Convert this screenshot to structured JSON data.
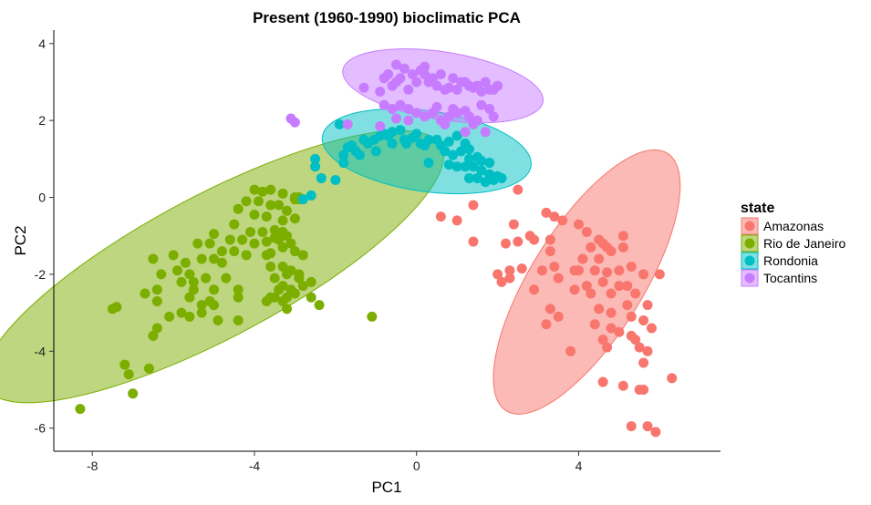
{
  "chart_data": {
    "type": "scatter",
    "title": "Present (1960-1990) bioclimatic PCA",
    "xlabel": "PC1",
    "ylabel": "PC2",
    "xlim": [
      -8.95,
      7.5
    ],
    "ylim": [
      -6.6,
      4.35
    ],
    "xticks": [
      -8,
      -4,
      0,
      4
    ],
    "yticks": [
      4,
      2,
      0,
      -2,
      -4,
      -6
    ],
    "grid": false,
    "legend": {
      "title": "state",
      "position": "right"
    },
    "series": [
      {
        "name": "Amazonas",
        "color": "#F8766D",
        "ellipse": {
          "cx": 4.2,
          "cy": -2.2,
          "rx": 3.75,
          "ry": 1.45,
          "angle_deg": 58
        },
        "points": [
          [
            0.6,
            -0.5
          ],
          [
            1.0,
            -0.6
          ],
          [
            1.4,
            -0.2
          ],
          [
            2.5,
            0.2
          ],
          [
            3.2,
            -0.4
          ],
          [
            1.4,
            -1.15
          ],
          [
            2.4,
            -0.7
          ],
          [
            2.8,
            -1.0
          ],
          [
            3.4,
            -0.5
          ],
          [
            3.6,
            -0.6
          ],
          [
            3.3,
            -1.1
          ],
          [
            2.2,
            -1.2
          ],
          [
            2.5,
            -1.15
          ],
          [
            2.9,
            -1.1
          ],
          [
            3.3,
            -1.4
          ],
          [
            4.0,
            -0.7
          ],
          [
            4.2,
            -0.9
          ],
          [
            4.5,
            -1.1
          ],
          [
            4.6,
            -1.2
          ],
          [
            4.3,
            -1.3
          ],
          [
            4.7,
            -1.3
          ],
          [
            4.5,
            -1.6
          ],
          [
            4.8,
            -1.4
          ],
          [
            4.1,
            -1.6
          ],
          [
            4.0,
            -1.9
          ],
          [
            5.1,
            -1.0
          ],
          [
            5.1,
            -1.3
          ],
          [
            3.9,
            -1.9
          ],
          [
            4.4,
            -1.9
          ],
          [
            4.6,
            -2.2
          ],
          [
            4.7,
            -1.95
          ],
          [
            5.0,
            -1.9
          ],
          [
            5.3,
            -1.8
          ],
          [
            5.2,
            -2.3
          ],
          [
            5.6,
            -2.0
          ],
          [
            6.0,
            -2.0
          ],
          [
            2.0,
            -2.0
          ],
          [
            2.3,
            -1.9
          ],
          [
            2.6,
            -1.85
          ],
          [
            3.1,
            -1.9
          ],
          [
            3.4,
            -1.8
          ],
          [
            3.5,
            -2.1
          ],
          [
            2.1,
            -2.2
          ],
          [
            2.3,
            -2.1
          ],
          [
            2.9,
            -2.4
          ],
          [
            3.9,
            -2.4
          ],
          [
            4.2,
            -2.3
          ],
          [
            4.3,
            -2.5
          ],
          [
            4.8,
            -2.5
          ],
          [
            5.0,
            -2.3
          ],
          [
            5.4,
            -2.5
          ],
          [
            5.7,
            -2.8
          ],
          [
            3.3,
            -2.9
          ],
          [
            3.5,
            -3.1
          ],
          [
            4.5,
            -2.9
          ],
          [
            4.8,
            -3.0
          ],
          [
            5.2,
            -2.8
          ],
          [
            5.3,
            -3.1
          ],
          [
            5.6,
            -3.2
          ],
          [
            3.2,
            -3.3
          ],
          [
            4.4,
            -3.3
          ],
          [
            4.8,
            -3.4
          ],
          [
            5.0,
            -3.5
          ],
          [
            5.3,
            -3.6
          ],
          [
            5.8,
            -3.4
          ],
          [
            4.6,
            -3.7
          ],
          [
            5.4,
            -3.7
          ],
          [
            5.5,
            -3.9
          ],
          [
            5.7,
            -4.0
          ],
          [
            3.8,
            -4.0
          ],
          [
            4.7,
            -3.9
          ],
          [
            5.6,
            -4.3
          ],
          [
            6.3,
            -4.7
          ],
          [
            4.6,
            -4.8
          ],
          [
            5.1,
            -4.9
          ],
          [
            5.5,
            -5.0
          ],
          [
            5.6,
            -5.0
          ],
          [
            5.3,
            -5.95
          ],
          [
            5.7,
            -5.95
          ],
          [
            5.9,
            -6.1
          ]
        ]
      },
      {
        "name": "Rio de Janeiro",
        "color": "#7CAE00",
        "ellipse": {
          "cx": -5.0,
          "cy": -1.8,
          "rx": 6.35,
          "ry": 1.85,
          "angle_deg": 28
        },
        "points": [
          [
            -4.0,
            0.2
          ],
          [
            -3.8,
            0.15
          ],
          [
            -3.6,
            0.2
          ],
          [
            -3.3,
            0.1
          ],
          [
            -3.0,
            0.0
          ],
          [
            -2.9,
            -0.05
          ],
          [
            -4.2,
            -0.1
          ],
          [
            -3.9,
            -0.1
          ],
          [
            -3.6,
            -0.2
          ],
          [
            -3.4,
            -0.2
          ],
          [
            -3.2,
            -0.35
          ],
          [
            -4.4,
            -0.3
          ],
          [
            -4.0,
            -0.45
          ],
          [
            -3.7,
            -0.5
          ],
          [
            -3.3,
            -0.6
          ],
          [
            -3.0,
            -0.55
          ],
          [
            -4.5,
            -0.7
          ],
          [
            -4.1,
            -0.9
          ],
          [
            -3.8,
            -0.9
          ],
          [
            -3.5,
            -0.85
          ],
          [
            -3.3,
            -0.9
          ],
          [
            -3.2,
            -1.0
          ],
          [
            -5.0,
            -0.95
          ],
          [
            -4.6,
            -1.1
          ],
          [
            -4.3,
            -1.1
          ],
          [
            -4.0,
            -1.2
          ],
          [
            -3.7,
            -1.15
          ],
          [
            -3.4,
            -1.1
          ],
          [
            -3.1,
            -1.2
          ],
          [
            -5.4,
            -1.2
          ],
          [
            -5.1,
            -1.2
          ],
          [
            -4.8,
            -1.4
          ],
          [
            -4.5,
            -1.4
          ],
          [
            -4.2,
            -1.5
          ],
          [
            -3.7,
            -1.5
          ],
          [
            -3.3,
            -1.3
          ],
          [
            -3.0,
            -1.4
          ],
          [
            -2.8,
            -1.5
          ],
          [
            -6.0,
            -1.5
          ],
          [
            -5.7,
            -1.7
          ],
          [
            -5.3,
            -1.6
          ],
          [
            -5.0,
            -1.6
          ],
          [
            -4.8,
            -1.7
          ],
          [
            -3.6,
            -1.8
          ],
          [
            -3.3,
            -1.8
          ],
          [
            -3.1,
            -1.9
          ],
          [
            -2.9,
            -2.0
          ],
          [
            -6.5,
            -1.6
          ],
          [
            -6.3,
            -2.0
          ],
          [
            -5.9,
            -1.9
          ],
          [
            -5.6,
            -2.0
          ],
          [
            -5.5,
            -2.2
          ],
          [
            -5.2,
            -2.1
          ],
          [
            -4.7,
            -2.1
          ],
          [
            -3.5,
            -2.1
          ],
          [
            -3.2,
            -2.0
          ],
          [
            -2.9,
            -2.1
          ],
          [
            -5.8,
            -2.2
          ],
          [
            -5.5,
            -2.4
          ],
          [
            -5.0,
            -2.4
          ],
          [
            -3.3,
            -2.3
          ],
          [
            -3.1,
            -2.4
          ],
          [
            -2.6,
            -2.2
          ],
          [
            -6.4,
            -2.4
          ],
          [
            -5.6,
            -2.6
          ],
          [
            -4.4,
            -2.4
          ],
          [
            -3.4,
            -2.4
          ],
          [
            -2.8,
            -2.3
          ],
          [
            -6.7,
            -2.5
          ],
          [
            -5.1,
            -2.7
          ],
          [
            -3.6,
            -2.6
          ],
          [
            -3.0,
            -2.5
          ],
          [
            -6.4,
            -2.7
          ],
          [
            -5.3,
            -2.8
          ],
          [
            -3.2,
            -2.6
          ],
          [
            -2.6,
            -2.6
          ],
          [
            -5.8,
            -3.0
          ],
          [
            -4.4,
            -2.6
          ],
          [
            -3.7,
            -2.7
          ],
          [
            -3.5,
            -2.6
          ],
          [
            -3.3,
            -2.7
          ],
          [
            -3.2,
            -2.9
          ],
          [
            -5.0,
            -2.8
          ],
          [
            -2.4,
            -2.8
          ],
          [
            -1.1,
            -3.1
          ],
          [
            -6.1,
            -3.1
          ],
          [
            -5.6,
            -3.1
          ],
          [
            -5.3,
            -3.0
          ],
          [
            -4.9,
            -3.2
          ],
          [
            -4.4,
            -3.2
          ],
          [
            -7.4,
            -2.85
          ],
          [
            -7.5,
            -2.9
          ],
          [
            -6.4,
            -3.4
          ],
          [
            -6.5,
            -3.6
          ],
          [
            -7.2,
            -4.35
          ],
          [
            -6.6,
            -4.45
          ],
          [
            -7.1,
            -4.6
          ],
          [
            -7.0,
            -5.1
          ],
          [
            -8.3,
            -5.5
          ],
          [
            -3.0,
            -0.05
          ],
          [
            -2.9,
            0.0
          ],
          [
            -3.6,
            -1.45
          ],
          [
            -3.5,
            -1.05
          ]
        ]
      },
      {
        "name": "Rondonia",
        "color": "#00BFC4",
        "ellipse": {
          "cx": 0.25,
          "cy": 1.2,
          "rx": 2.6,
          "ry": 1.05,
          "angle_deg": -8
        },
        "points": [
          [
            -1.9,
            1.9
          ],
          [
            -1.7,
            1.3
          ],
          [
            -1.6,
            1.35
          ],
          [
            -1.5,
            1.2
          ],
          [
            -1.3,
            1.5
          ],
          [
            -1.2,
            1.4
          ],
          [
            -1.05,
            1.5
          ],
          [
            -0.9,
            1.6
          ],
          [
            -0.8,
            1.65
          ],
          [
            -0.7,
            1.6
          ],
          [
            -0.6,
            1.7
          ],
          [
            -0.4,
            1.75
          ],
          [
            -0.3,
            1.5
          ],
          [
            -0.25,
            1.4
          ],
          [
            -0.1,
            1.55
          ],
          [
            0.0,
            1.65
          ],
          [
            0.1,
            1.4
          ],
          [
            0.2,
            1.35
          ],
          [
            0.3,
            1.5
          ],
          [
            0.5,
            1.5
          ],
          [
            0.6,
            1.35
          ],
          [
            0.8,
            1.45
          ],
          [
            1.0,
            1.6
          ],
          [
            1.2,
            1.4
          ],
          [
            1.3,
            1.25
          ],
          [
            0.7,
            1.2
          ],
          [
            0.9,
            1.1
          ],
          [
            1.1,
            1.2
          ],
          [
            1.3,
            1.0
          ],
          [
            1.5,
            1.05
          ],
          [
            1.6,
            0.95
          ],
          [
            1.8,
            0.9
          ],
          [
            1.4,
            0.8
          ],
          [
            1.6,
            0.7
          ],
          [
            1.8,
            0.6
          ],
          [
            2.0,
            0.55
          ],
          [
            1.5,
            0.5
          ],
          [
            1.2,
            0.8
          ],
          [
            1.3,
            0.5
          ],
          [
            1.7,
            0.4
          ],
          [
            1.9,
            0.45
          ],
          [
            2.1,
            0.5
          ],
          [
            -2.5,
            0.8
          ],
          [
            -2.5,
            1.0
          ],
          [
            -2.35,
            0.5
          ],
          [
            -2.0,
            0.45
          ],
          [
            -1.8,
            0.9
          ],
          [
            -1.8,
            1.1
          ],
          [
            -1.4,
            1.1
          ],
          [
            -0.6,
            1.4
          ],
          [
            0.3,
            0.9
          ],
          [
            0.8,
            0.85
          ],
          [
            1.0,
            0.8
          ],
          [
            -2.8,
            -0.05
          ],
          [
            -2.6,
            0.05
          ],
          [
            -1.0,
            1.2
          ]
        ]
      },
      {
        "name": "Tocantins",
        "color": "#C77CFF",
        "ellipse": {
          "cx": 0.65,
          "cy": 2.9,
          "rx": 2.5,
          "ry": 0.88,
          "angle_deg": -9
        },
        "points": [
          [
            -1.3,
            2.85
          ],
          [
            -0.9,
            2.75
          ],
          [
            -0.8,
            3.1
          ],
          [
            -0.7,
            3.2
          ],
          [
            -0.6,
            2.9
          ],
          [
            -0.5,
            3.0
          ],
          [
            -0.4,
            3.1
          ],
          [
            -0.3,
            3.35
          ],
          [
            -0.2,
            2.8
          ],
          [
            -0.1,
            3.2
          ],
          [
            0.0,
            3.0
          ],
          [
            0.1,
            3.3
          ],
          [
            0.2,
            3.2
          ],
          [
            0.3,
            3.0
          ],
          [
            0.4,
            3.1
          ],
          [
            0.5,
            2.9
          ],
          [
            0.6,
            3.2
          ],
          [
            0.7,
            2.8
          ],
          [
            0.8,
            2.85
          ],
          [
            0.9,
            3.1
          ],
          [
            1.0,
            2.8
          ],
          [
            1.1,
            3.0
          ],
          [
            1.2,
            3.0
          ],
          [
            1.3,
            2.9
          ],
          [
            1.4,
            2.85
          ],
          [
            1.5,
            2.9
          ],
          [
            1.6,
            2.75
          ],
          [
            1.7,
            3.0
          ],
          [
            1.8,
            2.8
          ],
          [
            1.9,
            2.8
          ],
          [
            2.0,
            2.9
          ],
          [
            -0.8,
            2.4
          ],
          [
            -0.6,
            2.3
          ],
          [
            -0.4,
            2.4
          ],
          [
            -0.2,
            2.3
          ],
          [
            0.0,
            2.2
          ],
          [
            0.2,
            2.1
          ],
          [
            0.4,
            2.2
          ],
          [
            0.5,
            2.35
          ],
          [
            0.6,
            2.0
          ],
          [
            0.8,
            2.1
          ],
          [
            0.9,
            2.3
          ],
          [
            1.0,
            2.2
          ],
          [
            1.2,
            2.25
          ],
          [
            1.3,
            2.1
          ],
          [
            1.4,
            1.9
          ],
          [
            1.5,
            2.0
          ],
          [
            1.6,
            2.4
          ],
          [
            1.8,
            2.3
          ],
          [
            1.9,
            2.1
          ],
          [
            1.7,
            1.7
          ],
          [
            1.2,
            1.7
          ],
          [
            0.7,
            1.9
          ],
          [
            -0.2,
            2.0
          ],
          [
            -0.5,
            2.05
          ],
          [
            -0.9,
            1.85
          ],
          [
            -1.7,
            1.9
          ],
          [
            -3.1,
            2.05
          ],
          [
            -3.0,
            1.95
          ],
          [
            -0.5,
            3.45
          ],
          [
            0.2,
            3.4
          ]
        ]
      }
    ]
  }
}
